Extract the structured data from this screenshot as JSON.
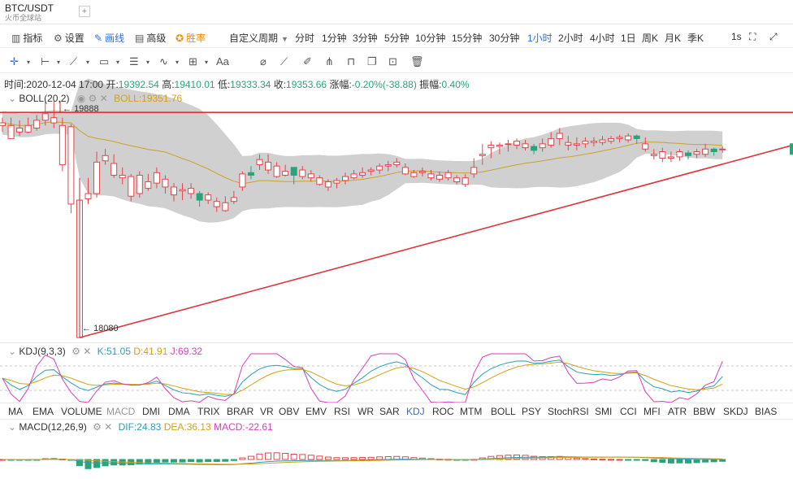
{
  "header": {
    "symbol": "BTC/USDT",
    "exchange": "火币全球站",
    "add_tab": "+"
  },
  "toolbar": {
    "indicators": "指标",
    "settings": "设置",
    "draw": "画线",
    "advanced": "高级",
    "premium": "胜率",
    "custom_period": "自定义周期",
    "periods": [
      "分时",
      "1分钟",
      "3分钟",
      "5分钟",
      "10分钟",
      "15分钟",
      "30分钟",
      "1小时",
      "2小时",
      "4小时",
      "1日",
      "周K",
      "月K",
      "季K"
    ],
    "active_period": "1小时",
    "refresh": "1s"
  },
  "drawing_tools": {
    "icons": [
      "crosshair-icon",
      "horizontal-line-icon",
      "trend-line-icon",
      "rectangle-icon",
      "parallel-channel-icon",
      "wave-icon",
      "grid-icon",
      "text-icon",
      "magnet-icon",
      "ruler-icon",
      "pen-icon",
      "measure-icon",
      "lock-icon",
      "copy-icon",
      "hide-icon",
      "trash-icon"
    ],
    "text_tool": "Aa"
  },
  "info": {
    "time_label": "时间:",
    "time": "2020-12-04 17:00",
    "open_label": "开:",
    "open": "19392.54",
    "high_label": "高:",
    "high": "19410.01",
    "low_label": "低:",
    "low": "19333.34",
    "close_label": "收:",
    "close": "19353.66",
    "change_label": "涨幅:",
    "change": "-0.20%(-38.88)",
    "amp_label": "振幅:",
    "amp": "0.40%"
  },
  "boll": {
    "name": "BOLL(20,2)",
    "value": "BOLL:19351.76"
  },
  "annotations": {
    "high_price": "19888",
    "low_price": "18080"
  },
  "kdj": {
    "name": "KDJ(9,3,3)",
    "k": "K:51.05",
    "d": "D:41.91",
    "j": "J:69.32"
  },
  "indicator_tabs": [
    "MA",
    "EMA",
    "VOLUME",
    "MACD",
    "DMI",
    "DMA",
    "TRIX",
    "BRAR",
    "VR",
    "OBV",
    "EMV",
    "RSI",
    "WR",
    "SAR",
    "KDJ",
    "ROC",
    "MTM",
    "BOLL",
    "PSY",
    "StochRSI",
    "SMI",
    "CCI",
    "MFI",
    "ATR",
    "BBW",
    "SKDJ",
    "BIAS"
  ],
  "active_indicator": "KDJ",
  "dim_indicator": "MACD",
  "macd": {
    "name": "MACD(12,26,9)",
    "dif": "DIF:24.83",
    "dea": "DEA:36.13",
    "macd": "MACD:-22.61"
  },
  "colors": {
    "up": "#e0474c",
    "down": "#2aa37a",
    "accent": "#2f6fd6",
    "band": "#c8c8c8",
    "trend": "#e0343c"
  },
  "candles": [
    [
      19720,
      19760,
      19700,
      19650
    ],
    [
      19700,
      19760,
      19600,
      19640
    ],
    [
      19680,
      19740,
      19650,
      19620
    ],
    [
      19700,
      19760,
      19650,
      19640
    ],
    [
      19740,
      19780,
      19680,
      19660
    ],
    [
      19790,
      19880,
      19740,
      19700
    ],
    [
      19760,
      19888,
      19720,
      19680
    ],
    [
      19700,
      19760,
      19400,
      19350
    ],
    [
      19690,
      19710,
      19100,
      19030
    ],
    [
      19130,
      19200,
      18080,
      18080
    ],
    [
      19180,
      19300,
      19140,
      19100
    ],
    [
      19420,
      19500,
      19180,
      19150
    ],
    [
      19470,
      19520,
      19430,
      19400
    ],
    [
      19410,
      19480,
      19320,
      19300
    ],
    [
      19320,
      19380,
      19300,
      19250
    ],
    [
      19310,
      19330,
      19160,
      19120
    ],
    [
      19320,
      19350,
      19180,
      19150
    ],
    [
      19270,
      19330,
      19220,
      19200
    ],
    [
      19340,
      19380,
      19260,
      19220
    ],
    [
      19290,
      19320,
      19230,
      19180
    ],
    [
      19230,
      19260,
      19170,
      19120
    ],
    [
      19210,
      19260,
      19200,
      19130
    ],
    [
      19220,
      19260,
      19180,
      19140
    ],
    [
      19130,
      19200,
      19180,
      19080
    ],
    [
      19170,
      19190,
      19130,
      19100
    ],
    [
      19120,
      19150,
      19080,
      19040
    ],
    [
      19110,
      19160,
      19050,
      19040
    ],
    [
      19150,
      19200,
      19120,
      19100
    ],
    [
      19330,
      19350,
      19230,
      19200
    ],
    [
      19320,
      19390,
      19340,
      19290
    ],
    [
      19440,
      19480,
      19400,
      19360
    ],
    [
      19420,
      19480,
      19360,
      19330
    ],
    [
      19390,
      19420,
      19310,
      19300
    ],
    [
      19350,
      19400,
      19320,
      19310
    ],
    [
      19320,
      19360,
      19380,
      19250
    ],
    [
      19360,
      19390,
      19310,
      19290
    ],
    [
      19330,
      19360,
      19300,
      19270
    ],
    [
      19300,
      19320,
      19250,
      19240
    ],
    [
      19270,
      19290,
      19230,
      19200
    ],
    [
      19280,
      19300,
      19260,
      19220
    ],
    [
      19310,
      19340,
      19280,
      19250
    ],
    [
      19330,
      19360,
      19300,
      19290
    ],
    [
      19340,
      19380,
      19320,
      19300
    ],
    [
      19360,
      19380,
      19350,
      19320
    ],
    [
      19390,
      19410,
      19360,
      19330
    ],
    [
      19400,
      19430,
      19390,
      19350
    ],
    [
      19420,
      19450,
      19400,
      19380
    ],
    [
      19380,
      19410,
      19330,
      19320
    ],
    [
      19340,
      19360,
      19310,
      19300
    ],
    [
      19350,
      19380,
      19340,
      19310
    ],
    [
      19330,
      19360,
      19300,
      19280
    ],
    [
      19320,
      19350,
      19290,
      19270
    ],
    [
      19340,
      19360,
      19300,
      19280
    ],
    [
      19300,
      19320,
      19270,
      19250
    ],
    [
      19300,
      19330,
      19250,
      19230
    ],
    [
      19380,
      19450,
      19330,
      19300
    ],
    [
      19480,
      19560,
      19470,
      19400
    ],
    [
      19550,
      19580,
      19530,
      19450
    ],
    [
      19550,
      19570,
      19540,
      19480
    ],
    [
      19560,
      19590,
      19560,
      19500
    ],
    [
      19580,
      19600,
      19550,
      19520
    ],
    [
      19560,
      19590,
      19530,
      19510
    ],
    [
      19510,
      19560,
      19540,
      19480
    ],
    [
      19560,
      19600,
      19530,
      19500
    ],
    [
      19600,
      19650,
      19550,
      19530
    ],
    [
      19640,
      19680,
      19600,
      19550
    ],
    [
      19570,
      19620,
      19550,
      19510
    ],
    [
      19560,
      19610,
      19550,
      19510
    ],
    [
      19580,
      19610,
      19560,
      19530
    ],
    [
      19580,
      19610,
      19570,
      19540
    ],
    [
      19590,
      19620,
      19570,
      19550
    ],
    [
      19600,
      19620,
      19580,
      19560
    ],
    [
      19610,
      19630,
      19600,
      19570
    ],
    [
      19620,
      19640,
      19590,
      19570
    ],
    [
      19600,
      19630,
      19620,
      19560
    ],
    [
      19560,
      19610,
      19520,
      19500
    ],
    [
      19480,
      19520,
      19470,
      19440
    ],
    [
      19500,
      19530,
      19450,
      19420
    ],
    [
      19460,
      19500,
      19450,
      19420
    ],
    [
      19500,
      19520,
      19460,
      19430
    ],
    [
      19470,
      19510,
      19490,
      19440
    ],
    [
      19500,
      19520,
      19480,
      19450
    ],
    [
      19520,
      19560,
      19480,
      19460
    ],
    [
      19500,
      19530,
      19520,
      19470
    ],
    [
      19520,
      19540,
      19520,
      19490
    ]
  ]
}
